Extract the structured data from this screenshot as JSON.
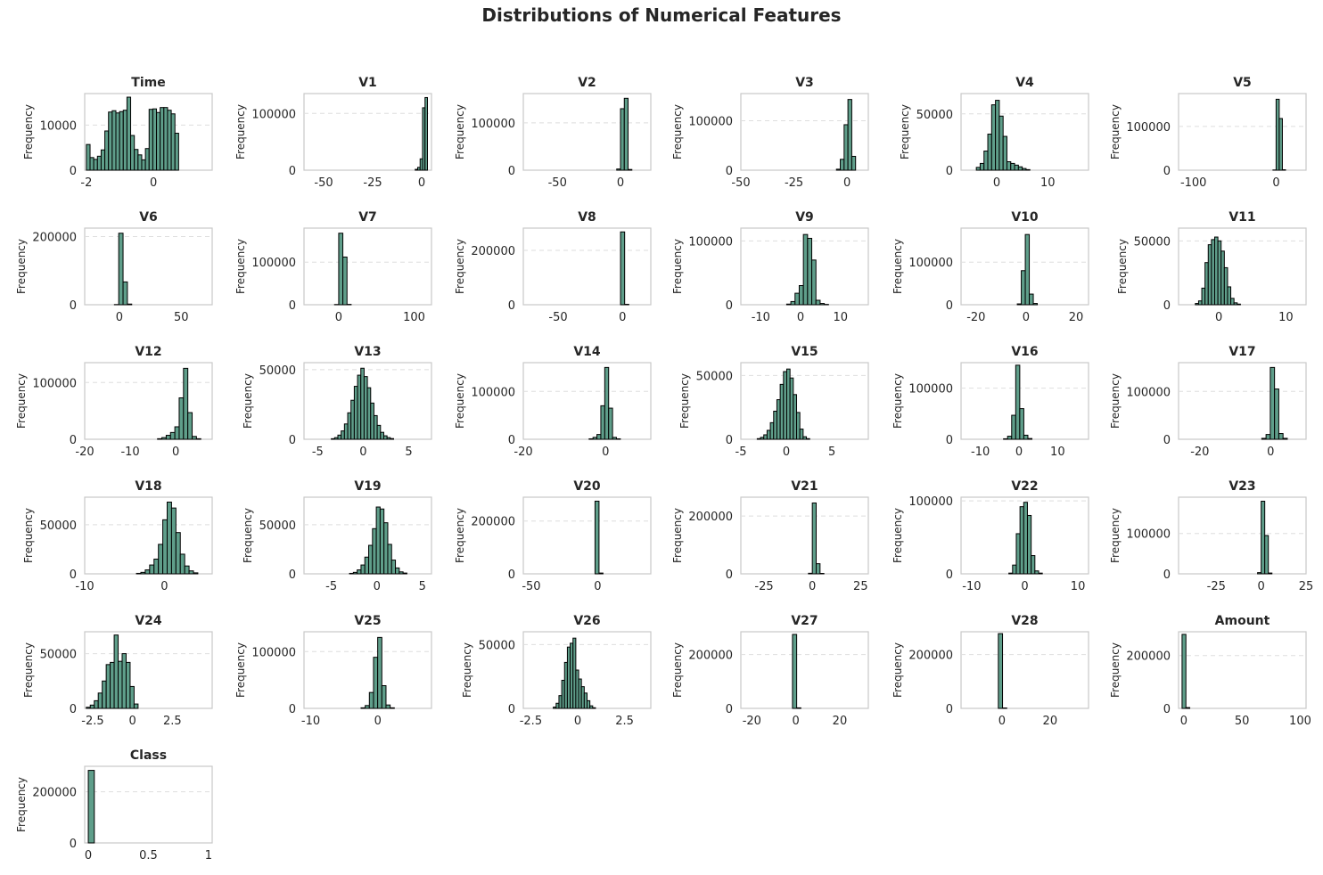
{
  "page": {
    "title": "Distributions of Numerical Features"
  },
  "style": {
    "bar_color": "#5f9e8a",
    "edge_color": "#000000",
    "frame_color": "#c8c8c8",
    "grid_color": "#dedede"
  },
  "chart_data": [
    {
      "type": "bar",
      "title": "Time",
      "xlabel": "",
      "ylabel": "Frequency",
      "xlim": [
        -2.05,
        1.75
      ],
      "ylim": [
        0,
        17000
      ],
      "xticks": [
        -2,
        0
      ],
      "yticks": [
        0,
        10000
      ],
      "grid": "y-dashed",
      "bins": {
        "x0": -2.0,
        "width": 0.11,
        "counts": [
          5700,
          2800,
          2400,
          3100,
          4500,
          8700,
          12900,
          13200,
          12700,
          13000,
          13300,
          16200,
          7700,
          4600,
          3400,
          2300,
          4800,
          13500,
          13600,
          12800,
          13900,
          13900,
          13300,
          12500,
          8200
        ]
      }
    },
    {
      "type": "bar",
      "title": "V1",
      "xlabel": "",
      "ylabel": "Frequency",
      "xlim": [
        -60,
        5
      ],
      "ylim": [
        0,
        135000
      ],
      "xticks": [
        -50,
        -25,
        0
      ],
      "yticks": [
        0,
        100000
      ],
      "grid": "y-dashed",
      "bins": {
        "x0": -3.3,
        "width": 1.25,
        "counts": [
          1500,
          5000,
          20000,
          110000,
          128000
        ]
      }
    },
    {
      "type": "bar",
      "title": "V2",
      "xlabel": "",
      "ylabel": "Frequency",
      "xlim": [
        -77,
        24
      ],
      "ylim": [
        0,
        162000
      ],
      "xticks": [
        -50,
        0
      ],
      "yticks": [
        0,
        100000
      ],
      "grid": "y-dashed",
      "bins": {
        "x0": -3,
        "width": 3,
        "counts": [
          2500,
          130000,
          152000,
          1500
        ]
      }
    },
    {
      "type": "bar",
      "title": "V3",
      "xlabel": "",
      "ylabel": "Frequency",
      "xlim": [
        -50,
        10
      ],
      "ylim": [
        0,
        155000
      ],
      "xticks": [
        -50,
        -25,
        0
      ],
      "yticks": [
        0,
        100000
      ],
      "grid": "y-dashed",
      "bins": {
        "x0": -5,
        "width": 1.8,
        "counts": [
          2000,
          22000,
          92000,
          143000,
          28000
        ]
      }
    },
    {
      "type": "bar",
      "title": "V4",
      "xlabel": "",
      "ylabel": "Frequency",
      "xlim": [
        -7,
        18
      ],
      "ylim": [
        0,
        68000
      ],
      "xticks": [
        0,
        10
      ],
      "yticks": [
        0,
        50000
      ],
      "grid": "y-dashed",
      "bins": {
        "x0": -4,
        "width": 0.75,
        "counts": [
          2500,
          6000,
          17000,
          32000,
          58000,
          62000,
          48000,
          30000,
          7500,
          6000,
          4500,
          3000,
          1500,
          500
        ]
      }
    },
    {
      "type": "bar",
      "title": "V5",
      "xlabel": "",
      "ylabel": "Frequency",
      "xlim": [
        -118,
        36
      ],
      "ylim": [
        0,
        175000
      ],
      "xticks": [
        -100,
        0
      ],
      "yticks": [
        0,
        100000
      ],
      "grid": "y-dashed",
      "bins": {
        "x0": -4,
        "width": 3.8,
        "counts": [
          500,
          162000,
          118000,
          1000
        ]
      }
    },
    {
      "type": "bar",
      "title": "V6",
      "xlabel": "",
      "ylabel": "Frequency",
      "xlim": [
        -28,
        75
      ],
      "ylim": [
        0,
        225000
      ],
      "xticks": [
        0,
        50
      ],
      "yticks": [
        0,
        200000
      ],
      "grid": "y-dashed",
      "bins": {
        "x0": -4,
        "width": 3.5,
        "counts": [
          500,
          210000,
          67000,
          2000
        ]
      }
    },
    {
      "type": "bar",
      "title": "V7",
      "xlabel": "",
      "ylabel": "Frequency",
      "xlim": [
        -46,
        123
      ],
      "ylim": [
        0,
        180000
      ],
      "xticks": [
        0,
        100
      ],
      "yticks": [
        0,
        100000
      ],
      "grid": "y-dashed",
      "bins": {
        "x0": -5.5,
        "width": 5.5,
        "counts": [
          500,
          168000,
          112000,
          800
        ]
      }
    },
    {
      "type": "bar",
      "title": "V8",
      "xlabel": "",
      "ylabel": "Frequency",
      "xlim": [
        -77,
        22
      ],
      "ylim": [
        0,
        282000
      ],
      "xticks": [
        -50,
        0
      ],
      "yticks": [
        0,
        200000
      ],
      "grid": "y-dashed",
      "bins": {
        "x0": -1.5,
        "width": 3.2,
        "counts": [
          268000,
          1500
        ]
      }
    },
    {
      "type": "bar",
      "title": "V9",
      "xlabel": "",
      "ylabel": "Frequency",
      "xlim": [
        -15,
        17
      ],
      "ylim": [
        0,
        120000
      ],
      "xticks": [
        -10,
        0,
        10
      ],
      "yticks": [
        0,
        100000
      ],
      "grid": "y-dashed",
      "bins": {
        "x0": -3.5,
        "width": 1.05,
        "counts": [
          1000,
          5000,
          18000,
          30000,
          110000,
          104000,
          70000,
          7000,
          2000,
          500
        ]
      }
    },
    {
      "type": "bar",
      "title": "V10",
      "xlabel": "",
      "ylabel": "Frequency",
      "xlim": [
        -26,
        25
      ],
      "ylim": [
        0,
        180000
      ],
      "xticks": [
        -20,
        0,
        20
      ],
      "yticks": [
        0,
        100000
      ],
      "grid": "y-dashed",
      "bins": {
        "x0": -3.5,
        "width": 1.6,
        "counts": [
          2000,
          80000,
          165000,
          25000,
          3000
        ]
      }
    },
    {
      "type": "bar",
      "title": "V11",
      "xlabel": "",
      "ylabel": "Frequency",
      "xlim": [
        -6,
        13
      ],
      "ylim": [
        0,
        60000
      ],
      "xticks": [
        0,
        10
      ],
      "yticks": [
        0,
        50000
      ],
      "grid": "y-dashed",
      "bins": {
        "x0": -3.5,
        "width": 0.48,
        "counts": [
          1000,
          3000,
          13000,
          33000,
          47000,
          51000,
          53000,
          50000,
          42000,
          29000,
          14000,
          5000,
          1500,
          500
        ]
      }
    },
    {
      "type": "bar",
      "title": "V12",
      "xlabel": "",
      "ylabel": "Frequency",
      "xlim": [
        -20,
        8
      ],
      "ylim": [
        0,
        135000
      ],
      "xticks": [
        -20,
        -10,
        0
      ],
      "yticks": [
        0,
        100000
      ],
      "grid": "y-dashed",
      "bins": {
        "x0": -4,
        "width": 0.95,
        "counts": [
          1000,
          3000,
          7000,
          12000,
          22000,
          73000,
          125000,
          47000,
          5000,
          1000
        ]
      }
    },
    {
      "type": "bar",
      "title": "V13",
      "xlabel": "",
      "ylabel": "Frequency",
      "xlim": [
        -6.5,
        7.5
      ],
      "ylim": [
        0,
        55000
      ],
      "xticks": [
        -5,
        0,
        5
      ],
      "yticks": [
        0,
        50000
      ],
      "grid": "y-dashed",
      "bins": {
        "x0": -3.5,
        "width": 0.36,
        "counts": [
          400,
          1200,
          3000,
          6000,
          11000,
          19000,
          28000,
          38000,
          46000,
          51000,
          45000,
          37000,
          26000,
          17000,
          10000,
          5000,
          2500,
          1200,
          500
        ]
      }
    },
    {
      "type": "bar",
      "title": "V14",
      "xlabel": "",
      "ylabel": "Frequency",
      "xlim": [
        -20,
        11
      ],
      "ylim": [
        0,
        160000
      ],
      "xticks": [
        -20,
        0
      ],
      "yticks": [
        0,
        100000
      ],
      "grid": "y-dashed",
      "bins": {
        "x0": -4,
        "width": 0.95,
        "counts": [
          1000,
          4000,
          10000,
          70000,
          150000,
          65000,
          4000,
          1000
        ]
      }
    },
    {
      "type": "bar",
      "title": "V15",
      "xlabel": "",
      "ylabel": "Frequency",
      "xlim": [
        -5,
        9
      ],
      "ylim": [
        0,
        60000
      ],
      "xticks": [
        -5,
        0,
        5
      ],
      "yticks": [
        0,
        50000
      ],
      "grid": "y-dashed",
      "bins": {
        "x0": -3.2,
        "width": 0.36,
        "counts": [
          500,
          1500,
          3500,
          7000,
          13000,
          22000,
          31000,
          43000,
          53000,
          55000,
          48000,
          35000,
          21000,
          8000,
          2000,
          500
        ]
      }
    },
    {
      "type": "bar",
      "title": "V16",
      "xlabel": "",
      "ylabel": "Frequency",
      "xlim": [
        -15,
        18
      ],
      "ylim": [
        0,
        150000
      ],
      "xticks": [
        -10,
        0,
        10
      ],
      "yticks": [
        0,
        100000
      ],
      "grid": "y-dashed",
      "bins": {
        "x0": -4,
        "width": 1.05,
        "counts": [
          1000,
          6000,
          47000,
          145000,
          60000,
          8000,
          1500
        ]
      }
    },
    {
      "type": "bar",
      "title": "V17",
      "xlabel": "",
      "ylabel": "Frequency",
      "xlim": [
        -26,
        10
      ],
      "ylim": [
        0,
        160000
      ],
      "xticks": [
        -20,
        0
      ],
      "yticks": [
        0,
        100000
      ],
      "grid": "y-dashed",
      "bins": {
        "x0": -2.5,
        "width": 1.2,
        "counts": [
          2000,
          10000,
          150000,
          105000,
          12000,
          2000
        ]
      }
    },
    {
      "type": "bar",
      "title": "V18",
      "xlabel": "",
      "ylabel": "Frequency",
      "xlim": [
        -10,
        6
      ],
      "ylim": [
        0,
        78000
      ],
      "xticks": [
        -10,
        0
      ],
      "yticks": [
        0,
        50000
      ],
      "grid": "y-dashed",
      "bins": {
        "x0": -3.5,
        "width": 0.55,
        "counts": [
          500,
          1500,
          4000,
          9000,
          15000,
          30000,
          55000,
          73000,
          67000,
          42000,
          20000,
          8000,
          3000,
          1000
        ]
      }
    },
    {
      "type": "bar",
      "title": "V19",
      "xlabel": "",
      "ylabel": "Frequency",
      "xlim": [
        -8,
        6
      ],
      "ylim": [
        0,
        78000
      ],
      "xticks": [
        -5,
        0,
        5
      ],
      "yticks": [
        0,
        50000
      ],
      "grid": "y-dashed",
      "bins": {
        "x0": -3,
        "width": 0.42,
        "counts": [
          500,
          1500,
          4000,
          9000,
          17000,
          29000,
          46000,
          68000,
          66000,
          52000,
          30000,
          14000,
          6000,
          2000,
          800
        ]
      }
    },
    {
      "type": "bar",
      "title": "V20",
      "xlabel": "",
      "ylabel": "Frequency",
      "xlim": [
        -56,
        40
      ],
      "ylim": [
        0,
        290000
      ],
      "xticks": [
        -50,
        0
      ],
      "yticks": [
        0,
        200000
      ],
      "grid": "y-dashed",
      "bins": {
        "x0": -2,
        "width": 3,
        "counts": [
          275000,
          3000
        ]
      }
    },
    {
      "type": "bar",
      "title": "V21",
      "xlabel": "",
      "ylabel": "Frequency",
      "xlim": [
        -37,
        29
      ],
      "ylim": [
        0,
        265000
      ],
      "xticks": [
        -25,
        0,
        25
      ],
      "yticks": [
        0,
        200000
      ],
      "grid": "y-dashed",
      "bins": {
        "x0": -2,
        "width": 2,
        "counts": [
          2000,
          245000,
          35000,
          1500
        ]
      }
    },
    {
      "type": "bar",
      "title": "V22",
      "xlabel": "",
      "ylabel": "Frequency",
      "xlim": [
        -12,
        12
      ],
      "ylim": [
        0,
        105000
      ],
      "xticks": [
        -10,
        0,
        10
      ],
      "yticks": [
        0,
        100000
      ],
      "grid": "y-dashed",
      "bins": {
        "x0": -3,
        "width": 0.7,
        "counts": [
          1000,
          12000,
          55000,
          92000,
          98000,
          80000,
          25000,
          4000,
          1000
        ]
      }
    },
    {
      "type": "bar",
      "title": "V23",
      "xlabel": "",
      "ylabel": "Frequency",
      "xlim": [
        -46,
        25
      ],
      "ylim": [
        0,
        190000
      ],
      "xticks": [
        -25,
        0,
        25
      ],
      "yticks": [
        0,
        100000
      ],
      "grid": "y-dashed",
      "bins": {
        "x0": -2,
        "width": 2,
        "counts": [
          3000,
          180000,
          95000,
          2000
        ]
      }
    },
    {
      "type": "bar",
      "title": "V24",
      "xlabel": "",
      "ylabel": "Frequency",
      "xlim": [
        -3,
        5
      ],
      "ylim": [
        0,
        70000
      ],
      "xticks": [
        -2.5,
        0,
        2.5
      ],
      "yticks": [
        0,
        50000
      ],
      "grid": "y-dashed",
      "bins": {
        "x0": -2.9,
        "width": 0.25,
        "counts": [
          1000,
          3000,
          7000,
          14000,
          25000,
          40000,
          42000,
          67000,
          43000,
          50000,
          42000,
          20000,
          4000
        ]
      }
    },
    {
      "type": "bar",
      "title": "V25",
      "xlabel": "",
      "ylabel": "Frequency",
      "xlim": [
        -11,
        8
      ],
      "ylim": [
        0,
        135000
      ],
      "xticks": [
        -10,
        0
      ],
      "yticks": [
        0,
        100000
      ],
      "grid": "y-dashed",
      "bins": {
        "x0": -2.5,
        "width": 0.62,
        "counts": [
          1000,
          5000,
          28000,
          90000,
          125000,
          40000,
          6000,
          1000
        ]
      }
    },
    {
      "type": "bar",
      "title": "V26",
      "xlabel": "",
      "ylabel": "Frequency",
      "xlim": [
        -2.9,
        3.9
      ],
      "ylim": [
        0,
        60000
      ],
      "xticks": [
        -2.5,
        0,
        2.5
      ],
      "yticks": [
        0,
        50000
      ],
      "grid": "y-dashed",
      "bins": {
        "x0": -1.3,
        "width": 0.15,
        "counts": [
          1000,
          4000,
          10000,
          22000,
          36000,
          48000,
          51000,
          55000,
          30000,
          23000,
          17000,
          12000,
          6000,
          2000,
          500
        ]
      }
    },
    {
      "type": "bar",
      "title": "V27",
      "xlabel": "",
      "ylabel": "Frequency",
      "xlim": [
        -25,
        33
      ],
      "ylim": [
        0,
        285000
      ],
      "xticks": [
        -20,
        0,
        20
      ],
      "yticks": [
        0,
        200000
      ],
      "grid": "y-dashed",
      "bins": {
        "x0": -1.5,
        "width": 1.9,
        "counts": [
          275000,
          2000
        ]
      }
    },
    {
      "type": "bar",
      "title": "V28",
      "xlabel": "",
      "ylabel": "Frequency",
      "xlim": [
        -17,
        36
      ],
      "ylim": [
        0,
        285000
      ],
      "xticks": [
        0,
        20
      ],
      "yticks": [
        0,
        200000
      ],
      "grid": "y-dashed",
      "bins": {
        "x0": -1.5,
        "width": 1.75,
        "counts": [
          278000,
          1500
        ]
      }
    },
    {
      "type": "bar",
      "title": "Amount",
      "xlabel": "",
      "ylabel": "Frequency",
      "xlim": [
        -4.5,
        105
      ],
      "ylim": [
        0,
        290000
      ],
      "xticks": [
        0,
        50,
        100
      ],
      "yticks": [
        0,
        200000
      ],
      "grid": "y-dashed",
      "bins": {
        "x0": -1.5,
        "width": 3.3,
        "counts": [
          280000,
          3000
        ]
      }
    },
    {
      "type": "bar",
      "title": "Class",
      "xlabel": "",
      "ylabel": "Frequency",
      "xlim": [
        -0.03,
        1.03
      ],
      "ylim": [
        0,
        300000
      ],
      "xticks": [
        0.0,
        0.5,
        1.0
      ],
      "yticks": [
        0,
        200000
      ],
      "grid": "y-dashed",
      "bins": {
        "x0": 0.0,
        "width": 0.05,
        "counts": [
          284000
        ]
      }
    }
  ]
}
